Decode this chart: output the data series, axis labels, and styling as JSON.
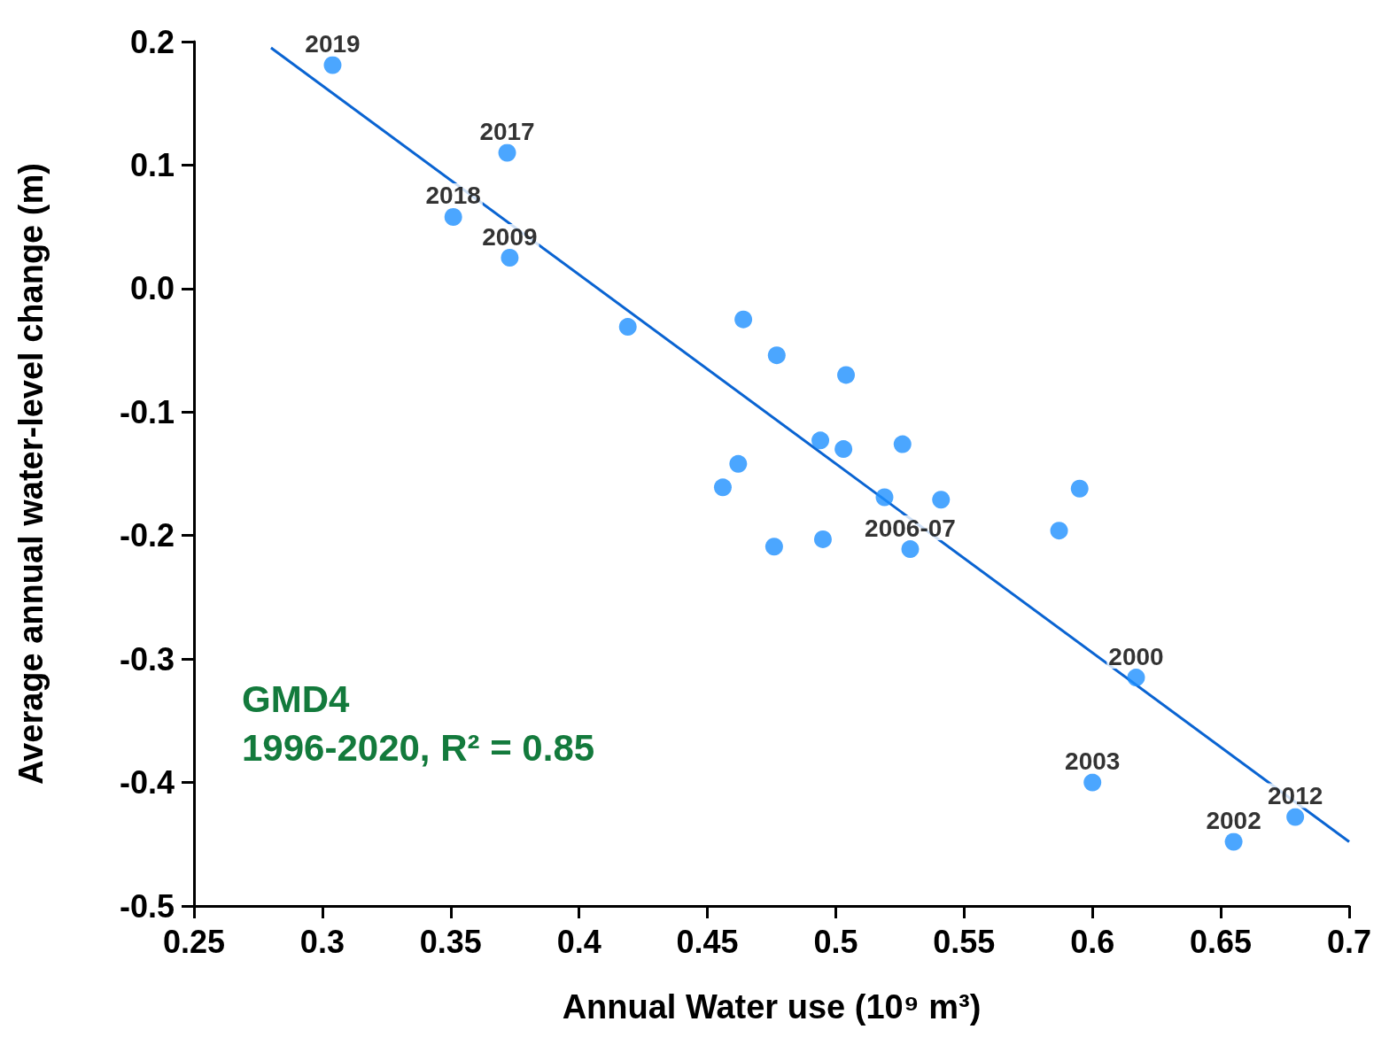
{
  "chart_data": {
    "type": "scatter",
    "xlabel": "Annual Water use (10⁹ m³)",
    "ylabel": "Average annual water-level change (m)",
    "xlim": [
      0.25,
      0.7
    ],
    "xticks": [
      0.25,
      0.3,
      0.35,
      0.4,
      0.45,
      0.5,
      0.55,
      0.6,
      0.65,
      0.7
    ],
    "ylim": [
      -0.5,
      0.2
    ],
    "yticks": [
      -0.5,
      -0.4,
      -0.3,
      -0.2,
      -0.1,
      {
        "value": 0,
        "label": "0.0"
      },
      0.1,
      0.2
    ],
    "grid": false,
    "marker": "circle",
    "series": [
      {
        "color": "#1e90ff",
        "x": [
          0.304,
          0.372,
          0.351,
          0.373,
          0.419,
          0.464,
          0.477,
          0.504,
          0.494,
          0.503,
          0.526,
          0.462,
          0.456,
          0.519,
          0.541,
          0.476,
          0.495,
          0.529,
          0.587,
          0.595,
          0.617,
          0.6,
          0.655,
          0.679
        ],
        "values": [
          0.181,
          0.11,
          0.058,
          0.025,
          -0.031,
          -0.025,
          -0.054,
          -0.07,
          -0.123,
          -0.13,
          -0.126,
          -0.142,
          -0.161,
          -0.169,
          -0.171,
          -0.209,
          -0.203,
          -0.211,
          -0.196,
          -0.162,
          -0.315,
          -0.4,
          -0.448,
          -0.428
        ]
      },
      {
        "type": "line",
        "marker": "none",
        "color": "#0a64d2",
        "x": [
          0.28,
          0.7
        ],
        "values": [
          0.195,
          -0.448
        ]
      }
    ],
    "annotations": [
      {
        "text": "2019",
        "x": 0.304,
        "y": 0.181
      },
      {
        "text": "2017",
        "x": 0.372,
        "y": 0.11
      },
      {
        "text": "2018",
        "x": 0.351,
        "y": 0.058
      },
      {
        "text": "2009",
        "x": 0.373,
        "y": 0.025
      },
      {
        "text": "2006-07",
        "x": 0.529,
        "y": -0.211
      },
      {
        "text": "2000",
        "x": 0.617,
        "y": -0.315
      },
      {
        "text": "2003",
        "x": 0.6,
        "y": -0.4
      },
      {
        "text": "2012",
        "x": 0.679,
        "y": -0.428
      },
      {
        "text": "2002",
        "x": 0.655,
        "y": -0.448
      },
      "GMD4",
      "1996-2020, R² = 0.85"
    ]
  }
}
